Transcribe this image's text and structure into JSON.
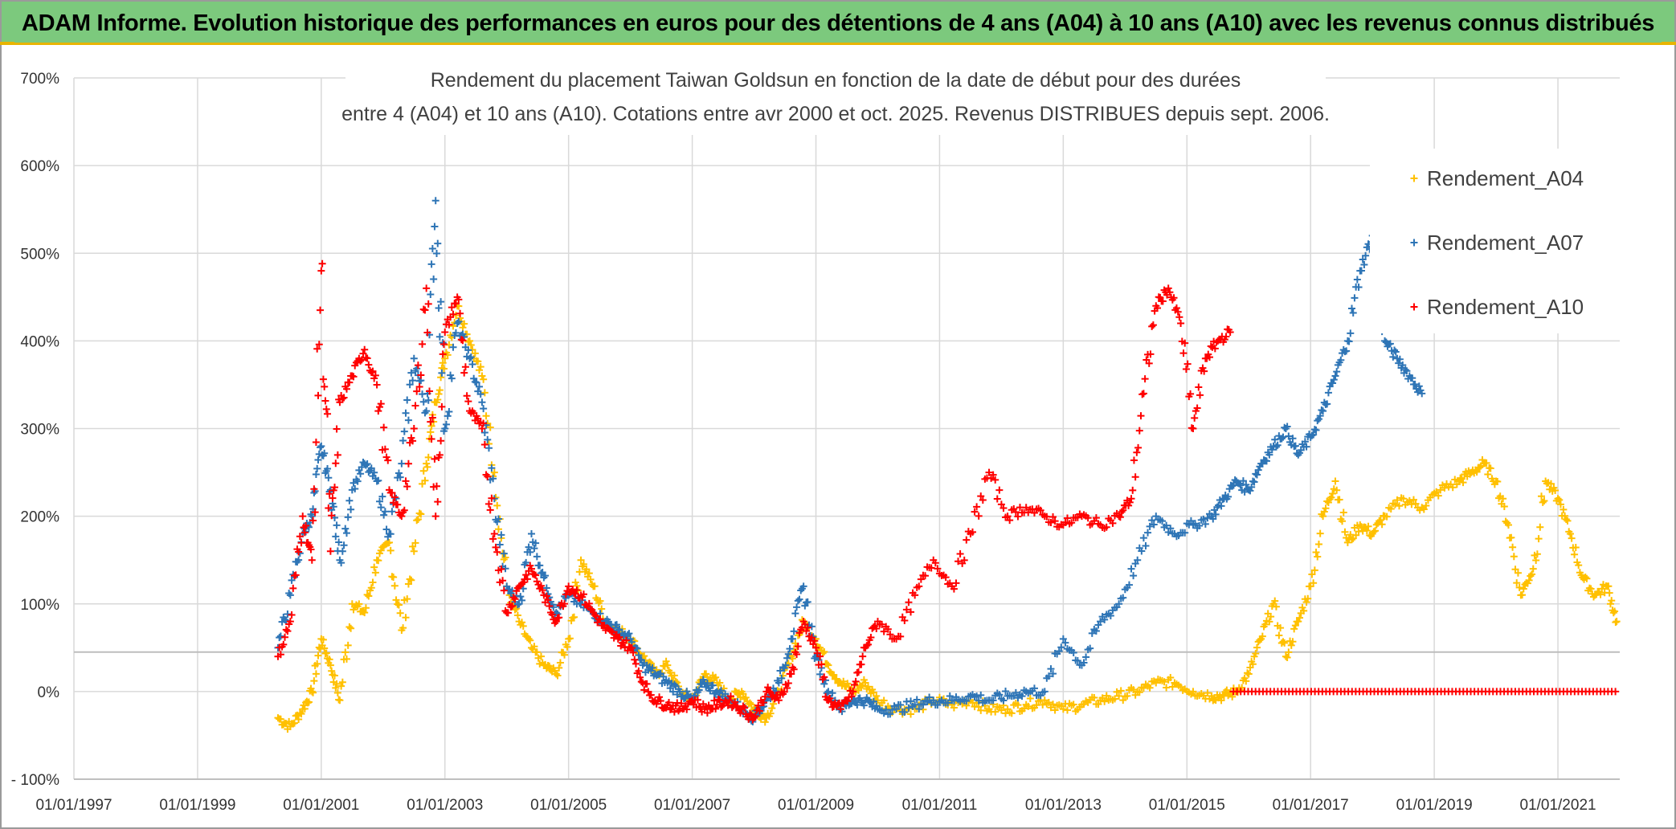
{
  "header": {
    "title": "ADAM Informe. Evolution historique des performances en euros pour des détentions de 4 ans (A04) à 10 ans (A10) avec les revenus connus distribués"
  },
  "chart_data": {
    "type": "scatter",
    "title_line1": "Rendement du placement Taiwan Goldsun  en fonction de la date de début pour des durées",
    "title_line2": "entre 4 (A04) et 10 ans (A10). Cotations entre avr 2000 et oct. 2025. Revenus DISTRIBUES depuis sept. 2006.",
    "xlabel": "",
    "ylabel": "",
    "xlim": [
      1997.0,
      2022.0
    ],
    "ylim": [
      -100,
      700
    ],
    "y_ticks": [
      "- 100%",
      "0%",
      "100%",
      "200%",
      "300%",
      "400%",
      "500%",
      "600%",
      "700%"
    ],
    "y_tick_values": [
      -100,
      0,
      100,
      200,
      300,
      400,
      500,
      600,
      700
    ],
    "x_ticks": [
      "01/01/1997",
      "01/01/1999",
      "01/01/2001",
      "01/01/2003",
      "01/01/2005",
      "01/01/2007",
      "01/01/2009",
      "01/01/2011",
      "01/01/2013",
      "01/01/2015",
      "01/01/2017",
      "01/01/2019",
      "01/01/2021"
    ],
    "x_tick_values": [
      1997,
      1999,
      2001,
      2003,
      2005,
      2007,
      2009,
      2011,
      2013,
      2015,
      2017,
      2019,
      2021
    ],
    "reference_line_value": 45,
    "grid": true,
    "legend_position": "right",
    "series": [
      {
        "name": "Rendement_A04",
        "color": "#ffc000",
        "x": [
          2000.3,
          2000.5,
          2000.7,
          2000.85,
          2001.0,
          2001.15,
          2001.3,
          2001.5,
          2001.7,
          2001.9,
          2002.1,
          2002.3,
          2002.5,
          2002.7,
          2002.85,
          2003.0,
          2003.2,
          2003.4,
          2003.6,
          2003.8,
          2004.0,
          2004.2,
          2004.4,
          2004.6,
          2004.8,
          2005.0,
          2005.2,
          2005.4,
          2005.6,
          2005.8,
          2006.0,
          2006.2,
          2006.4,
          2006.6,
          2006.8,
          2007.0,
          2007.2,
          2007.4,
          2007.6,
          2007.8,
          2008.0,
          2008.2,
          2008.4,
          2008.6,
          2008.8,
          2009.0,
          2009.2,
          2009.4,
          2009.6,
          2009.8,
          2010.0,
          2010.3,
          2010.6,
          2010.9,
          2011.2,
          2011.5,
          2011.8,
          2012.1,
          2012.4,
          2012.7,
          2013.0,
          2013.3,
          2013.6,
          2013.9,
          2014.2,
          2014.5,
          2014.8,
          2015.1,
          2015.4,
          2015.6,
          2015.8,
          2016.0,
          2016.2,
          2016.4,
          2016.6,
          2016.8,
          2017.0,
          2017.2,
          2017.4,
          2017.6,
          2017.8,
          2018.0,
          2018.2,
          2018.5,
          2018.8,
          2019.1,
          2019.4,
          2019.6,
          2019.8,
          2020.0,
          2020.2,
          2020.4,
          2020.6,
          2020.8,
          2021.0,
          2021.2,
          2021.4,
          2021.6,
          2021.8,
          2021.95
        ],
        "y": [
          -30,
          -40,
          -20,
          0,
          60,
          30,
          -10,
          100,
          90,
          150,
          170,
          70,
          160,
          260,
          330,
          380,
          440,
          400,
          360,
          250,
          120,
          80,
          50,
          30,
          20,
          60,
          150,
          120,
          80,
          70,
          60,
          40,
          20,
          30,
          0,
          -10,
          20,
          10,
          -10,
          0,
          -20,
          -30,
          0,
          40,
          80,
          60,
          30,
          10,
          0,
          10,
          -10,
          -20,
          -20,
          -10,
          -15,
          -10,
          -20,
          -20,
          -15,
          -10,
          -20,
          -15,
          -10,
          -5,
          0,
          10,
          10,
          0,
          -5,
          -5,
          0,
          20,
          60,
          100,
          40,
          80,
          120,
          200,
          240,
          170,
          190,
          180,
          200,
          220,
          210,
          230,
          240,
          250,
          260,
          240,
          190,
          110,
          140,
          240,
          220,
          180,
          130,
          110,
          120,
          80
        ]
      },
      {
        "name": "Rendement_A07",
        "color": "#2e75b6",
        "x": [
          2000.3,
          2000.5,
          2000.7,
          2000.85,
          2001.0,
          2001.15,
          2001.3,
          2001.5,
          2001.7,
          2001.9,
          2002.1,
          2002.3,
          2002.5,
          2002.7,
          2002.85,
          2003.0,
          2003.2,
          2003.4,
          2003.6,
          2003.8,
          2004.0,
          2004.2,
          2004.4,
          2004.6,
          2004.8,
          2005.0,
          2005.2,
          2005.4,
          2005.6,
          2005.8,
          2006.0,
          2006.2,
          2006.4,
          2006.6,
          2006.8,
          2007.0,
          2007.2,
          2007.4,
          2007.6,
          2007.8,
          2008.0,
          2008.2,
          2008.4,
          2008.6,
          2008.8,
          2009.0,
          2009.2,
          2009.4,
          2009.6,
          2009.8,
          2010.0,
          2010.3,
          2010.6,
          2010.9,
          2011.2,
          2011.5,
          2011.8,
          2012.1,
          2012.4,
          2012.7,
          2013.0,
          2013.3,
          2013.6,
          2013.9,
          2014.2,
          2014.5,
          2014.8,
          2015.1,
          2015.4,
          2015.6,
          2015.8,
          2016.0,
          2016.2,
          2016.4,
          2016.6,
          2016.8,
          2017.0,
          2017.2,
          2017.4,
          2017.6,
          2017.8,
          2018.0,
          2018.2,
          2018.4,
          2018.6,
          2018.8
        ],
        "y": [
          50,
          110,
          180,
          200,
          280,
          230,
          150,
          230,
          260,
          240,
          180,
          260,
          380,
          320,
          560,
          300,
          420,
          380,
          330,
          220,
          120,
          100,
          180,
          130,
          90,
          110,
          100,
          90,
          80,
          70,
          60,
          30,
          20,
          10,
          0,
          -10,
          10,
          0,
          -10,
          -20,
          -30,
          -10,
          10,
          60,
          120,
          40,
          0,
          -20,
          -10,
          -10,
          -20,
          -20,
          -15,
          -10,
          -10,
          -5,
          -10,
          -5,
          0,
          0,
          60,
          30,
          80,
          100,
          150,
          200,
          180,
          190,
          200,
          220,
          240,
          230,
          260,
          280,
          300,
          270,
          290,
          320,
          360,
          400,
          480,
          520,
          400,
          380,
          360,
          340
        ]
      },
      {
        "name": "Rendement_A10",
        "color": "#ff0000",
        "x": [
          2000.3,
          2000.5,
          2000.7,
          2000.85,
          2001.0,
          2001.15,
          2001.3,
          2001.5,
          2001.7,
          2001.9,
          2002.1,
          2002.3,
          2002.5,
          2002.7,
          2002.85,
          2003.0,
          2003.2,
          2003.4,
          2003.6,
          2003.8,
          2004.0,
          2004.2,
          2004.4,
          2004.6,
          2004.8,
          2005.0,
          2005.2,
          2005.4,
          2005.6,
          2005.8,
          2006.0,
          2006.2,
          2006.4,
          2006.6,
          2006.8,
          2007.0,
          2007.2,
          2007.4,
          2007.6,
          2007.8,
          2008.0,
          2008.2,
          2008.4,
          2008.6,
          2008.8,
          2009.0,
          2009.2,
          2009.4,
          2009.6,
          2009.8,
          2010.0,
          2010.3,
          2010.6,
          2010.9,
          2011.2,
          2011.5,
          2011.8,
          2012.1,
          2012.4,
          2012.7,
          2013.0,
          2013.3,
          2013.6,
          2013.9,
          2014.1,
          2014.3,
          2014.5,
          2014.7,
          2014.9,
          2015.1,
          2015.3,
          2015.5,
          2015.7
        ],
        "y": [
          40,
          80,
          200,
          150,
          480,
          160,
          330,
          360,
          390,
          350,
          230,
          200,
          300,
          460,
          200,
          410,
          450,
          320,
          300,
          180,
          90,
          120,
          140,
          110,
          80,
          120,
          110,
          90,
          70,
          60,
          50,
          10,
          -10,
          -15,
          -20,
          -10,
          -20,
          -15,
          -10,
          -20,
          -30,
          0,
          -10,
          20,
          80,
          50,
          -10,
          -20,
          0,
          50,
          80,
          60,
          110,
          150,
          120,
          180,
          250,
          200,
          210,
          200,
          190,
          200,
          190,
          200,
          220,
          340,
          440,
          460,
          420,
          300,
          380,
          400,
          410
        ]
      }
    ],
    "series_zero_tail": {
      "name": "Rendement_A10",
      "x_start": 2015.75,
      "x_end": 2021.95,
      "value": 0
    }
  }
}
